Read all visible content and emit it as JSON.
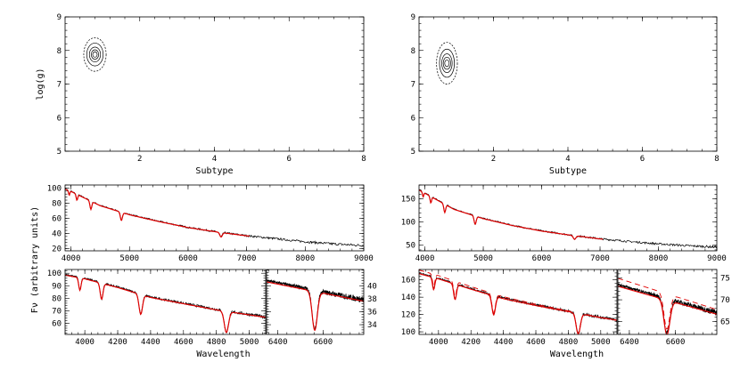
{
  "shared_ylabel": "Fν  (arbitrary units)",
  "colors": {
    "observed": "#000000",
    "model": "#e00000",
    "contour": "#000000"
  },
  "chart_data": [
    {
      "type": "contour",
      "name": "left-contour",
      "xlabel": "Subtype",
      "ylabel": "log(g)",
      "xlim": [
        0,
        8
      ],
      "ylim": [
        5,
        9
      ],
      "xticks": [
        "2",
        "4",
        "6",
        "8"
      ],
      "yticks": [
        "5",
        "6",
        "7",
        "8",
        "9"
      ],
      "center": [
        0.8,
        7.88
      ],
      "contours": [
        {
          "rx": 0.06,
          "ry": 0.08
        },
        {
          "rx": 0.1,
          "ry": 0.14
        },
        {
          "rx": 0.15,
          "ry": 0.22
        },
        {
          "rx": 0.22,
          "ry": 0.34
        },
        {
          "rx": 0.3,
          "ry": 0.5
        }
      ]
    },
    {
      "type": "contour",
      "name": "right-contour",
      "xlabel": "Subtype",
      "ylabel": "",
      "xlim": [
        0,
        8
      ],
      "ylim": [
        5,
        9
      ],
      "xticks": [
        "2",
        "4",
        "6",
        "8"
      ],
      "yticks": [
        "5",
        "6",
        "7",
        "8",
        "9"
      ],
      "center": [
        0.75,
        7.62
      ],
      "contours": [
        {
          "rx": 0.06,
          "ry": 0.1
        },
        {
          "rx": 0.1,
          "ry": 0.18
        },
        {
          "rx": 0.14,
          "ry": 0.28
        },
        {
          "rx": 0.2,
          "ry": 0.42
        },
        {
          "rx": 0.28,
          "ry": 0.62
        }
      ]
    },
    {
      "type": "line",
      "name": "left-full-spectrum",
      "xlabel": "",
      "xlim": [
        3900,
        9000
      ],
      "ylim": [
        17,
        104
      ],
      "xticks": [
        "4000",
        "5000",
        "6000",
        "7000",
        "8000",
        "9000"
      ],
      "yticks": [
        "20",
        "40",
        "60",
        "80",
        "100"
      ],
      "continuum": {
        "x": [
          3900,
          4000,
          4500,
          5000,
          5500,
          6000,
          6500,
          7000,
          7500,
          8000,
          8500,
          9000
        ],
        "y": [
          99,
          96,
          77,
          65,
          56,
          48,
          42,
          37,
          33,
          29,
          26,
          24
        ]
      },
      "lines": [
        {
          "x": 3970,
          "depth": 6,
          "width": 15
        },
        {
          "x": 4102,
          "depth": 8,
          "width": 18
        },
        {
          "x": 4340,
          "depth": 11,
          "width": 22
        },
        {
          "x": 4861,
          "depth": 11,
          "width": 25
        },
        {
          "x": 6563,
          "depth": 6,
          "width": 30
        }
      ],
      "model_x_max": 7050,
      "noise": 1.2
    },
    {
      "type": "line",
      "name": "right-full-spectrum",
      "xlabel": "",
      "xlim": [
        3900,
        9000
      ],
      "ylim": [
        38,
        180
      ],
      "xticks": [
        "4000",
        "5000",
        "6000",
        "7000",
        "8000",
        "9000"
      ],
      "yticks": [
        "50",
        "100",
        "150"
      ],
      "continuum": {
        "x": [
          3900,
          4000,
          4500,
          5000,
          5500,
          6000,
          6500,
          7000,
          7500,
          8000,
          8500,
          9000
        ],
        "y": [
          170,
          163,
          128,
          108,
          93,
          81,
          72,
          64,
          58,
          53,
          49,
          46
        ]
      },
      "lines": [
        {
          "x": 3970,
          "depth": 10,
          "width": 15
        },
        {
          "x": 4102,
          "depth": 14,
          "width": 18
        },
        {
          "x": 4340,
          "depth": 18,
          "width": 22
        },
        {
          "x": 4861,
          "depth": 18,
          "width": 25
        },
        {
          "x": 6563,
          "depth": 8,
          "width": 30
        }
      ],
      "model_x_max": 7050,
      "noise": 1.8
    },
    {
      "type": "line",
      "name": "left-blue-detail",
      "xlabel": "Wavelength",
      "xlim": [
        3880,
        5100
      ],
      "ylim": [
        51,
        103
      ],
      "xticks": [
        "4000",
        "4200",
        "4400",
        "4600",
        "4800",
        "5000"
      ],
      "yticks": [
        "60",
        "70",
        "80",
        "90",
        "100"
      ],
      "continuum": {
        "x": [
          3880,
          4000,
          4200,
          4400,
          4600,
          4800,
          5000,
          5100
        ],
        "y": [
          99,
          96,
          89,
          81,
          76,
          71,
          67,
          65
        ]
      },
      "lines": [
        {
          "x": 3970,
          "depth": 10,
          "width": 10
        },
        {
          "x": 4102,
          "depth": 13,
          "width": 12
        },
        {
          "x": 4340,
          "depth": 16,
          "width": 15
        },
        {
          "x": 4861,
          "depth": 17,
          "width": 18
        }
      ],
      "model_x_max": 5100,
      "noise": 0.9
    },
    {
      "type": "line",
      "name": "left-halpha-detail",
      "xlabel": "",
      "xlim": [
        6350,
        6780
      ],
      "ylim": [
        32.5,
        42.5
      ],
      "xticks": [
        "6400",
        "6600"
      ],
      "yticks": [
        "34",
        "36",
        "38",
        "40"
      ],
      "yaxis_side": "right",
      "continuum": {
        "x": [
          6350,
          6780
        ],
        "y": [
          40.8,
          37.8
        ]
      },
      "lines": [
        {
          "x": 6563,
          "depth": 6,
          "width": 16
        }
      ],
      "model_x_max": 6780,
      "noise": 0.35
    },
    {
      "type": "line",
      "name": "right-blue-detail",
      "xlabel": "Wavelength",
      "xlim": [
        3880,
        5100
      ],
      "ylim": [
        97,
        172
      ],
      "xticks": [
        "4000",
        "4200",
        "4400",
        "4600",
        "4800",
        "5000"
      ],
      "yticks": [
        "100",
        "120",
        "140",
        "160"
      ],
      "continuum": {
        "x": [
          3880,
          4000,
          4200,
          4400,
          4600,
          4800,
          5000,
          5100
        ],
        "y": [
          168,
          162,
          150,
          139,
          131,
          124,
          117,
          114
        ]
      },
      "lines": [
        {
          "x": 3970,
          "depth": 14,
          "width": 10
        },
        {
          "x": 4102,
          "depth": 18,
          "width": 12
        },
        {
          "x": 4340,
          "depth": 22,
          "width": 15
        },
        {
          "x": 4861,
          "depth": 24,
          "width": 18
        }
      ],
      "model_x_max": 5100,
      "noise": 1.4
    },
    {
      "type": "line",
      "name": "right-halpha-detail",
      "xlabel": "",
      "xlim": [
        6350,
        6780
      ],
      "ylim": [
        62,
        77
      ],
      "xticks": [
        "6400",
        "6600"
      ],
      "yticks": [
        "65",
        "70",
        "75"
      ],
      "yaxis_side": "right",
      "continuum": {
        "x": [
          6350,
          6780
        ],
        "y": [
          73.5,
          67
        ]
      },
      "lines": [
        {
          "x": 6563,
          "depth": 8,
          "width": 18
        }
      ],
      "model_x_max": 6780,
      "noise": 0.5
    }
  ]
}
